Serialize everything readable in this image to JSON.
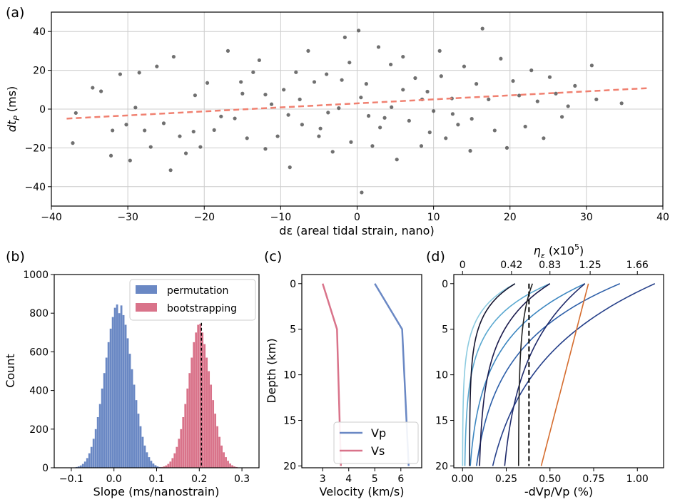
{
  "chart_data": [
    {
      "panel": "(a)",
      "type": "scatter",
      "xlabel": "dε (areal tidal strain, nano)",
      "ylabel": "dt_P (ms)",
      "ylabel_main": "dt",
      "ylabel_sub": "P",
      "ylabel_unit": " (ms)",
      "xlim": [
        -40,
        40
      ],
      "ylim": [
        -50,
        50
      ],
      "xticks": [
        -40,
        -30,
        -20,
        -10,
        0,
        10,
        20,
        30,
        40
      ],
      "yticks": [
        -40,
        -20,
        0,
        20,
        40
      ],
      "grid": true,
      "point_color": "#404040",
      "trend_color": "#f08070",
      "trend_line": {
        "x": [
          -38,
          38
        ],
        "y": [
          -4.9,
          10.8
        ]
      },
      "points": [
        [
          -37.2,
          -17.5
        ],
        [
          -36.8,
          -2.0
        ],
        [
          -34.6,
          11.0
        ],
        [
          -33.5,
          9.2
        ],
        [
          -32.2,
          -24.0
        ],
        [
          -32.0,
          -11.0
        ],
        [
          -31.0,
          18.0
        ],
        [
          -30.2,
          -8.0
        ],
        [
          -29.7,
          -26.5
        ],
        [
          -29.0,
          0.8
        ],
        [
          -28.5,
          18.8
        ],
        [
          -27.8,
          -11.0
        ],
        [
          -27.0,
          -19.5
        ],
        [
          -26.2,
          22.0
        ],
        [
          -25.3,
          -7.3
        ],
        [
          -24.4,
          -31.5
        ],
        [
          -24.0,
          27.0
        ],
        [
          -23.2,
          -14.0
        ],
        [
          -22.4,
          -22.8
        ],
        [
          -21.4,
          -11.6
        ],
        [
          -21.2,
          7.1
        ],
        [
          -20.5,
          -19.5
        ],
        [
          -19.6,
          13.5
        ],
        [
          -18.7,
          -10.8
        ],
        [
          -17.8,
          -3.8
        ],
        [
          -16.9,
          30.0
        ],
        [
          -16.0,
          -4.8
        ],
        [
          -15.2,
          14.0
        ],
        [
          -14.4,
          -15.0
        ],
        [
          -13.6,
          19.0
        ],
        [
          -12.8,
          25.2
        ],
        [
          -12.0,
          -20.5
        ],
        [
          -11.2,
          2.5
        ],
        [
          -10.4,
          -14.0
        ],
        [
          -9.6,
          10.0
        ],
        [
          -8.8,
          -30.0
        ],
        [
          -8.0,
          19.0
        ],
        [
          -7.2,
          -8.0
        ],
        [
          -6.4,
          30.0
        ],
        [
          -5.6,
          14.0
        ],
        [
          -4.8,
          -10.0
        ],
        [
          -4.0,
          18.0
        ],
        [
          -3.2,
          -22.0
        ],
        [
          -2.4,
          0.5
        ],
        [
          -1.6,
          37.0
        ],
        [
          -0.8,
          -17.0
        ],
        [
          0.2,
          40.5
        ],
        [
          0.6,
          -43.0
        ],
        [
          1.2,
          13.0
        ],
        [
          2.0,
          -19.0
        ],
        [
          2.8,
          32.0
        ],
        [
          3.6,
          -4.5
        ],
        [
          4.4,
          23.0
        ],
        [
          5.2,
          -26.0
        ],
        [
          6.0,
          27.0
        ],
        [
          6.8,
          -6.0
        ],
        [
          7.6,
          16.0
        ],
        [
          8.4,
          -19.0
        ],
        [
          9.2,
          9.0
        ],
        [
          10.0,
          -1.0
        ],
        [
          10.8,
          30.0
        ],
        [
          11.6,
          -15.0
        ],
        [
          12.4,
          5.5
        ],
        [
          13.2,
          -8.0
        ],
        [
          14.0,
          22.0
        ],
        [
          14.8,
          -21.5
        ],
        [
          15.6,
          13.0
        ],
        [
          16.4,
          41.5
        ],
        [
          17.2,
          5.0
        ],
        [
          18.0,
          -11.0
        ],
        [
          18.8,
          26.0
        ],
        [
          19.6,
          -20.0
        ],
        [
          20.4,
          14.5
        ],
        [
          21.2,
          7.0
        ],
        [
          22.0,
          -9.0
        ],
        [
          22.8,
          20.0
        ],
        [
          23.6,
          4.0
        ],
        [
          24.4,
          -15.0
        ],
        [
          25.2,
          16.5
        ],
        [
          26.0,
          8.0
        ],
        [
          26.8,
          -4.0
        ],
        [
          27.6,
          1.5
        ],
        [
          28.5,
          12.0
        ],
        [
          30.7,
          22.5
        ],
        [
          31.3,
          5.0
        ],
        [
          34.6,
          3.0
        ],
        [
          -7.5,
          5.0
        ],
        [
          -3.8,
          -1.8
        ],
        [
          0.5,
          6.0
        ],
        [
          4.5,
          1.0
        ],
        [
          8.5,
          5.0
        ],
        [
          12.5,
          -2.5
        ],
        [
          -15.0,
          8.0
        ],
        [
          3.0,
          -9.5
        ],
        [
          -2.0,
          15.0
        ],
        [
          6.0,
          10.0
        ],
        [
          -9.0,
          -3.0
        ],
        [
          11.0,
          17.0
        ],
        [
          -5.0,
          -14.0
        ],
        [
          1.5,
          -3.5
        ],
        [
          -12.0,
          7.5
        ],
        [
          15.0,
          -5.0
        ],
        [
          -1.0,
          24.0
        ],
        [
          9.5,
          -12.0
        ]
      ]
    },
    {
      "panel": "(b)",
      "type": "bar",
      "xlabel": "Slope (ms/nanostrain)",
      "ylabel": "Count",
      "xlim": [
        -0.14,
        0.34
      ],
      "ylim": [
        0,
        1000
      ],
      "xticks": [
        -0.1,
        0.0,
        0.1,
        0.2,
        0.3
      ],
      "xtick_labels": [
        "−0.1",
        "0.0",
        "0.1",
        "0.2",
        "0.3"
      ],
      "yticks": [
        0,
        200,
        400,
        600,
        800,
        1000
      ],
      "bin_width": 0.005,
      "vline": 0.205,
      "legend_position": "top-right",
      "series": [
        {
          "name": "permutation",
          "color": "#6a88c4",
          "bin_start": -0.095,
          "values": [
            2,
            4,
            7,
            12,
            20,
            32,
            50,
            75,
            108,
            150,
            200,
            262,
            330,
            410,
            490,
            570,
            650,
            720,
            780,
            828,
            845,
            800,
            840,
            790,
            740,
            670,
            590,
            510,
            430,
            350,
            280,
            215,
            160,
            115,
            80,
            55,
            36,
            22,
            13,
            7,
            4
          ]
        },
        {
          "name": "bootstrapping",
          "color": "#d9738a",
          "bin_start": 0.105,
          "values": [
            2,
            4,
            7,
            12,
            20,
            32,
            50,
            75,
            108,
            150,
            200,
            262,
            330,
            410,
            490,
            570,
            650,
            700,
            740,
            745,
            700,
            640,
            570,
            500,
            430,
            350,
            280,
            215,
            160,
            115,
            80,
            55,
            36,
            22,
            13,
            7,
            4
          ]
        }
      ]
    },
    {
      "panel": "(c)",
      "type": "line",
      "xlabel": "Velocity (km/s)",
      "ylabel": "Depth (km)",
      "xlim": [
        2.2,
        6.8
      ],
      "ylim": [
        20.2,
        -1.0
      ],
      "xticks": [
        3,
        4,
        5,
        6
      ],
      "yticks": [
        0,
        5,
        10,
        15,
        20
      ],
      "legend_position": "bottom-right",
      "series": [
        {
          "name": "Vp",
          "color": "#6a88c4",
          "x": [
            5.0,
            6.05,
            6.3
          ],
          "y": [
            0,
            5,
            20
          ]
        },
        {
          "name": "Vs",
          "color": "#d9738a",
          "x": [
            3.0,
            3.55,
            3.7
          ],
          "y": [
            0,
            5,
            20
          ]
        }
      ]
    },
    {
      "panel": "(d)",
      "type": "line",
      "xlabel": "-dVp/Vp (%)",
      "ylabel": "",
      "top_axis_label": "η_ε (x10^5)",
      "top_label_eta": "η",
      "top_label_sub": "ε",
      "top_label_mid": " (x10",
      "top_label_sup": "5",
      "top_label_end": ")",
      "xlim": [
        -0.05,
        1.15
      ],
      "ylim": [
        20.2,
        -1.0
      ],
      "xticks": [
        0.0,
        0.25,
        0.5,
        0.75,
        1.0
      ],
      "xtick_labels": [
        "0.00",
        "0.25",
        "0.50",
        "0.75",
        "1.00"
      ],
      "yticks": [
        0,
        5,
        10,
        15,
        20
      ],
      "top_ticks": [
        {
          "label": "0",
          "x": 0.0
        },
        {
          "label": "0.42",
          "x": 0.28
        },
        {
          "label": "0.83",
          "x": 0.5
        },
        {
          "label": "1.25",
          "x": 0.73
        },
        {
          "label": "1.66",
          "x": 1.0
        }
      ],
      "vline": 0.38,
      "series": [
        {
          "color": "#8ccbe0",
          "surface": 0.3,
          "floor": 0.0,
          "decay": 3.0
        },
        {
          "color": "#5aa8d0",
          "surface": 0.5,
          "floor": 0.01,
          "decay": 4.0
        },
        {
          "color": "#3c86c0",
          "surface": 0.7,
          "floor": 0.02,
          "decay": 6.0
        },
        {
          "color": "#2c5ea8",
          "surface": 0.9,
          "floor": 0.03,
          "decay": 7.0
        },
        {
          "color": "#26408a",
          "surface": 1.1,
          "floor": 0.06,
          "decay": 9.0
        },
        {
          "color": "#1f2a6a",
          "surface": 0.7,
          "floor": 0.2,
          "decay": 8.0
        },
        {
          "color": "#1a1a4c",
          "surface": 0.5,
          "floor": 0.09,
          "decay": 5.0
        },
        {
          "color": "#14142e",
          "surface": 0.3,
          "floor": 0.04,
          "decay": 3.0
        },
        {
          "color": "#222222",
          "surface": 0.4,
          "floor": 0.32,
          "decay": 4.0
        },
        {
          "color": "#d56d2f",
          "surface": 0.72,
          "floor": 0.45,
          "decay": 999
        }
      ]
    }
  ]
}
